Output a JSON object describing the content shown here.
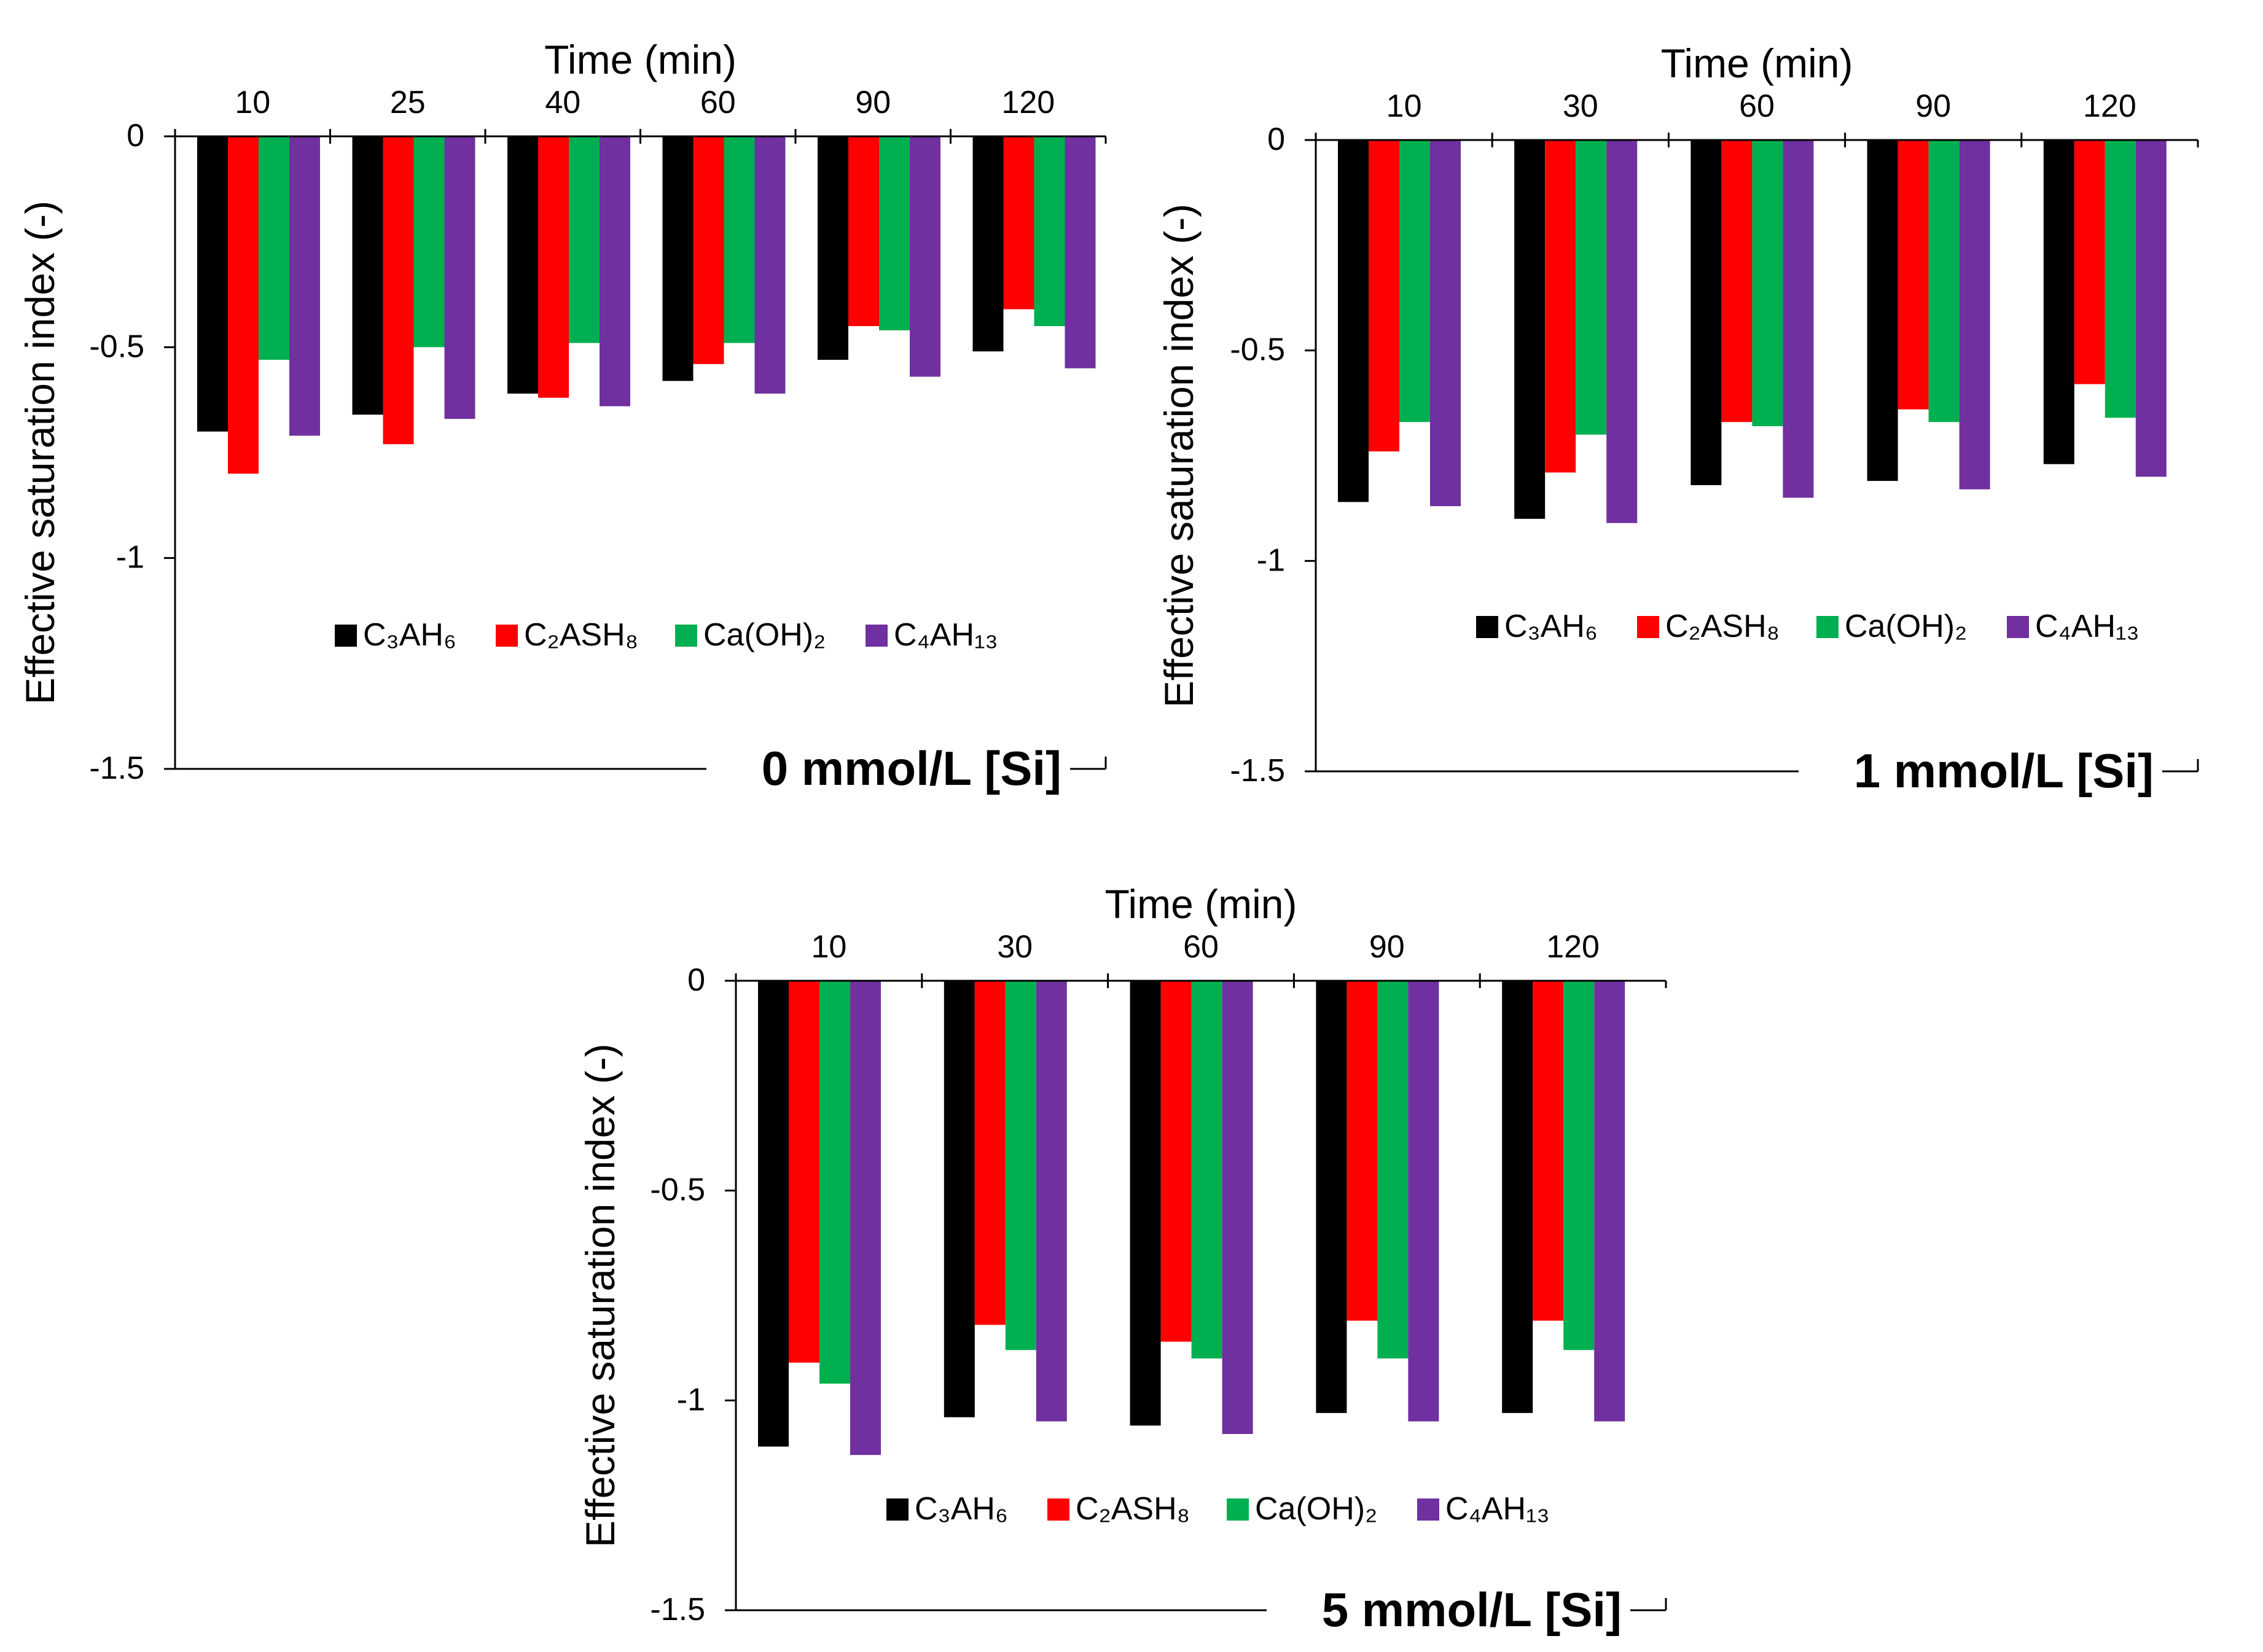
{
  "chart_data": [
    {
      "type": "bar",
      "title": "0 mmol/L [Si]",
      "xlabel": "Time (min)",
      "ylabel": "Effective saturation index (-)",
      "ylim": [
        -1.5,
        0
      ],
      "yticks": [
        "0",
        "-0.5",
        "-1",
        "-1.5"
      ],
      "ytick_values": [
        0,
        -0.5,
        -1,
        -1.5
      ],
      "x_axis_position": "top",
      "legend_position": "bottom-center",
      "grid": false,
      "categories": [
        "10",
        "25",
        "40",
        "60",
        "90",
        "120"
      ],
      "series": [
        {
          "name": "C₃AH₆",
          "color": "#000000",
          "values": [
            -0.7,
            -0.66,
            -0.61,
            -0.58,
            -0.53,
            -0.51
          ]
        },
        {
          "name": "C₂ASH₈",
          "color": "#ff0000",
          "values": [
            -0.8,
            -0.73,
            -0.62,
            -0.54,
            -0.45,
            -0.41
          ]
        },
        {
          "name": "Ca(OH)₂",
          "color": "#00b050",
          "values": [
            -0.53,
            -0.5,
            -0.49,
            -0.49,
            -0.46,
            -0.45
          ]
        },
        {
          "name": "C₄AH₁₃",
          "color": "#7030a0",
          "values": [
            -0.71,
            -0.67,
            -0.64,
            -0.61,
            -0.57,
            -0.55
          ]
        }
      ]
    },
    {
      "type": "bar",
      "title": "1 mmol/L [Si]",
      "xlabel": "Time (min)",
      "ylabel": "Effective saturation index (-)",
      "ylim": [
        -1.5,
        0
      ],
      "yticks": [
        "0",
        "-0.5",
        "-1",
        "-1.5"
      ],
      "ytick_values": [
        0,
        -0.5,
        -1,
        -1.5
      ],
      "x_axis_position": "top",
      "legend_position": "bottom-center",
      "grid": false,
      "categories": [
        "10",
        "30",
        "60",
        "90",
        "120"
      ],
      "series": [
        {
          "name": "C₃AH₆",
          "color": "#000000",
          "values": [
            -0.86,
            -0.9,
            -0.82,
            -0.81,
            -0.77
          ]
        },
        {
          "name": "C₂ASH₈",
          "color": "#ff0000",
          "values": [
            -0.74,
            -0.79,
            -0.67,
            -0.64,
            -0.58
          ]
        },
        {
          "name": "Ca(OH)₂",
          "color": "#00b050",
          "values": [
            -0.67,
            -0.7,
            -0.68,
            -0.67,
            -0.66
          ]
        },
        {
          "name": "C₄AH₁₃",
          "color": "#7030a0",
          "values": [
            -0.87,
            -0.91,
            -0.85,
            -0.83,
            -0.8
          ]
        }
      ]
    },
    {
      "type": "bar",
      "title": "5 mmol/L [Si]",
      "xlabel": "Time (min)",
      "ylabel": "Effective saturation index (-)",
      "ylim": [
        -1.5,
        0
      ],
      "yticks": [
        "0",
        "-0.5",
        "-1",
        "-1.5"
      ],
      "ytick_values": [
        0,
        -0.5,
        -1,
        -1.5
      ],
      "x_axis_position": "top",
      "legend_position": "bottom-center",
      "grid": false,
      "categories": [
        "10",
        "30",
        "60",
        "90",
        "120"
      ],
      "series": [
        {
          "name": "C₃AH₆",
          "color": "#000000",
          "values": [
            -1.11,
            -1.04,
            -1.06,
            -1.03,
            -1.03
          ]
        },
        {
          "name": "C₂ASH₈",
          "color": "#ff0000",
          "values": [
            -0.91,
            -0.82,
            -0.86,
            -0.81,
            -0.81
          ]
        },
        {
          "name": "Ca(OH)₂",
          "color": "#00b050",
          "values": [
            -0.96,
            -0.88,
            -0.9,
            -0.9,
            -0.88
          ]
        },
        {
          "name": "C₄AH₁₃",
          "color": "#7030a0",
          "values": [
            -1.13,
            -1.05,
            -1.08,
            -1.05,
            -1.05
          ]
        }
      ]
    }
  ]
}
